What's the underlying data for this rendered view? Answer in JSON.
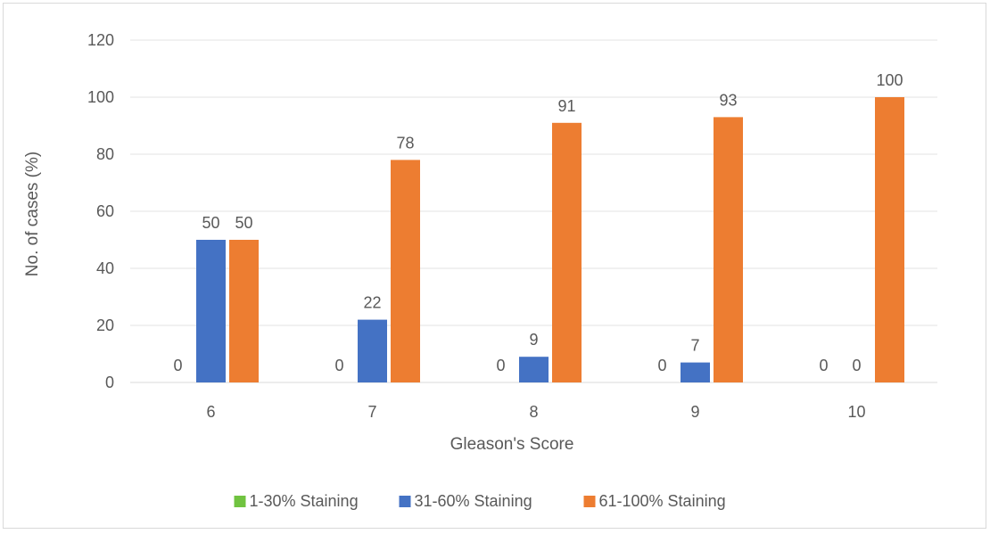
{
  "chart_data": {
    "type": "bar",
    "title": "",
    "xlabel": "Gleason's Score",
    "ylabel": "No. of cases (%)",
    "categories": [
      "6",
      "7",
      "8",
      "9",
      "10"
    ],
    "ylim": [
      0,
      120
    ],
    "yticks": [
      0,
      20,
      40,
      60,
      80,
      100,
      120
    ],
    "grid": true,
    "legend_position": "bottom",
    "series": [
      {
        "name": "1-30% Staining",
        "color": "#70c340",
        "values": [
          0,
          0,
          0,
          0,
          0
        ]
      },
      {
        "name": "31-60% Staining",
        "color": "#4472c4",
        "values": [
          50,
          22,
          9,
          7,
          0
        ]
      },
      {
        "name": "61-100% Staining",
        "color": "#ed7d31",
        "values": [
          50,
          78,
          91,
          93,
          100
        ]
      }
    ]
  }
}
